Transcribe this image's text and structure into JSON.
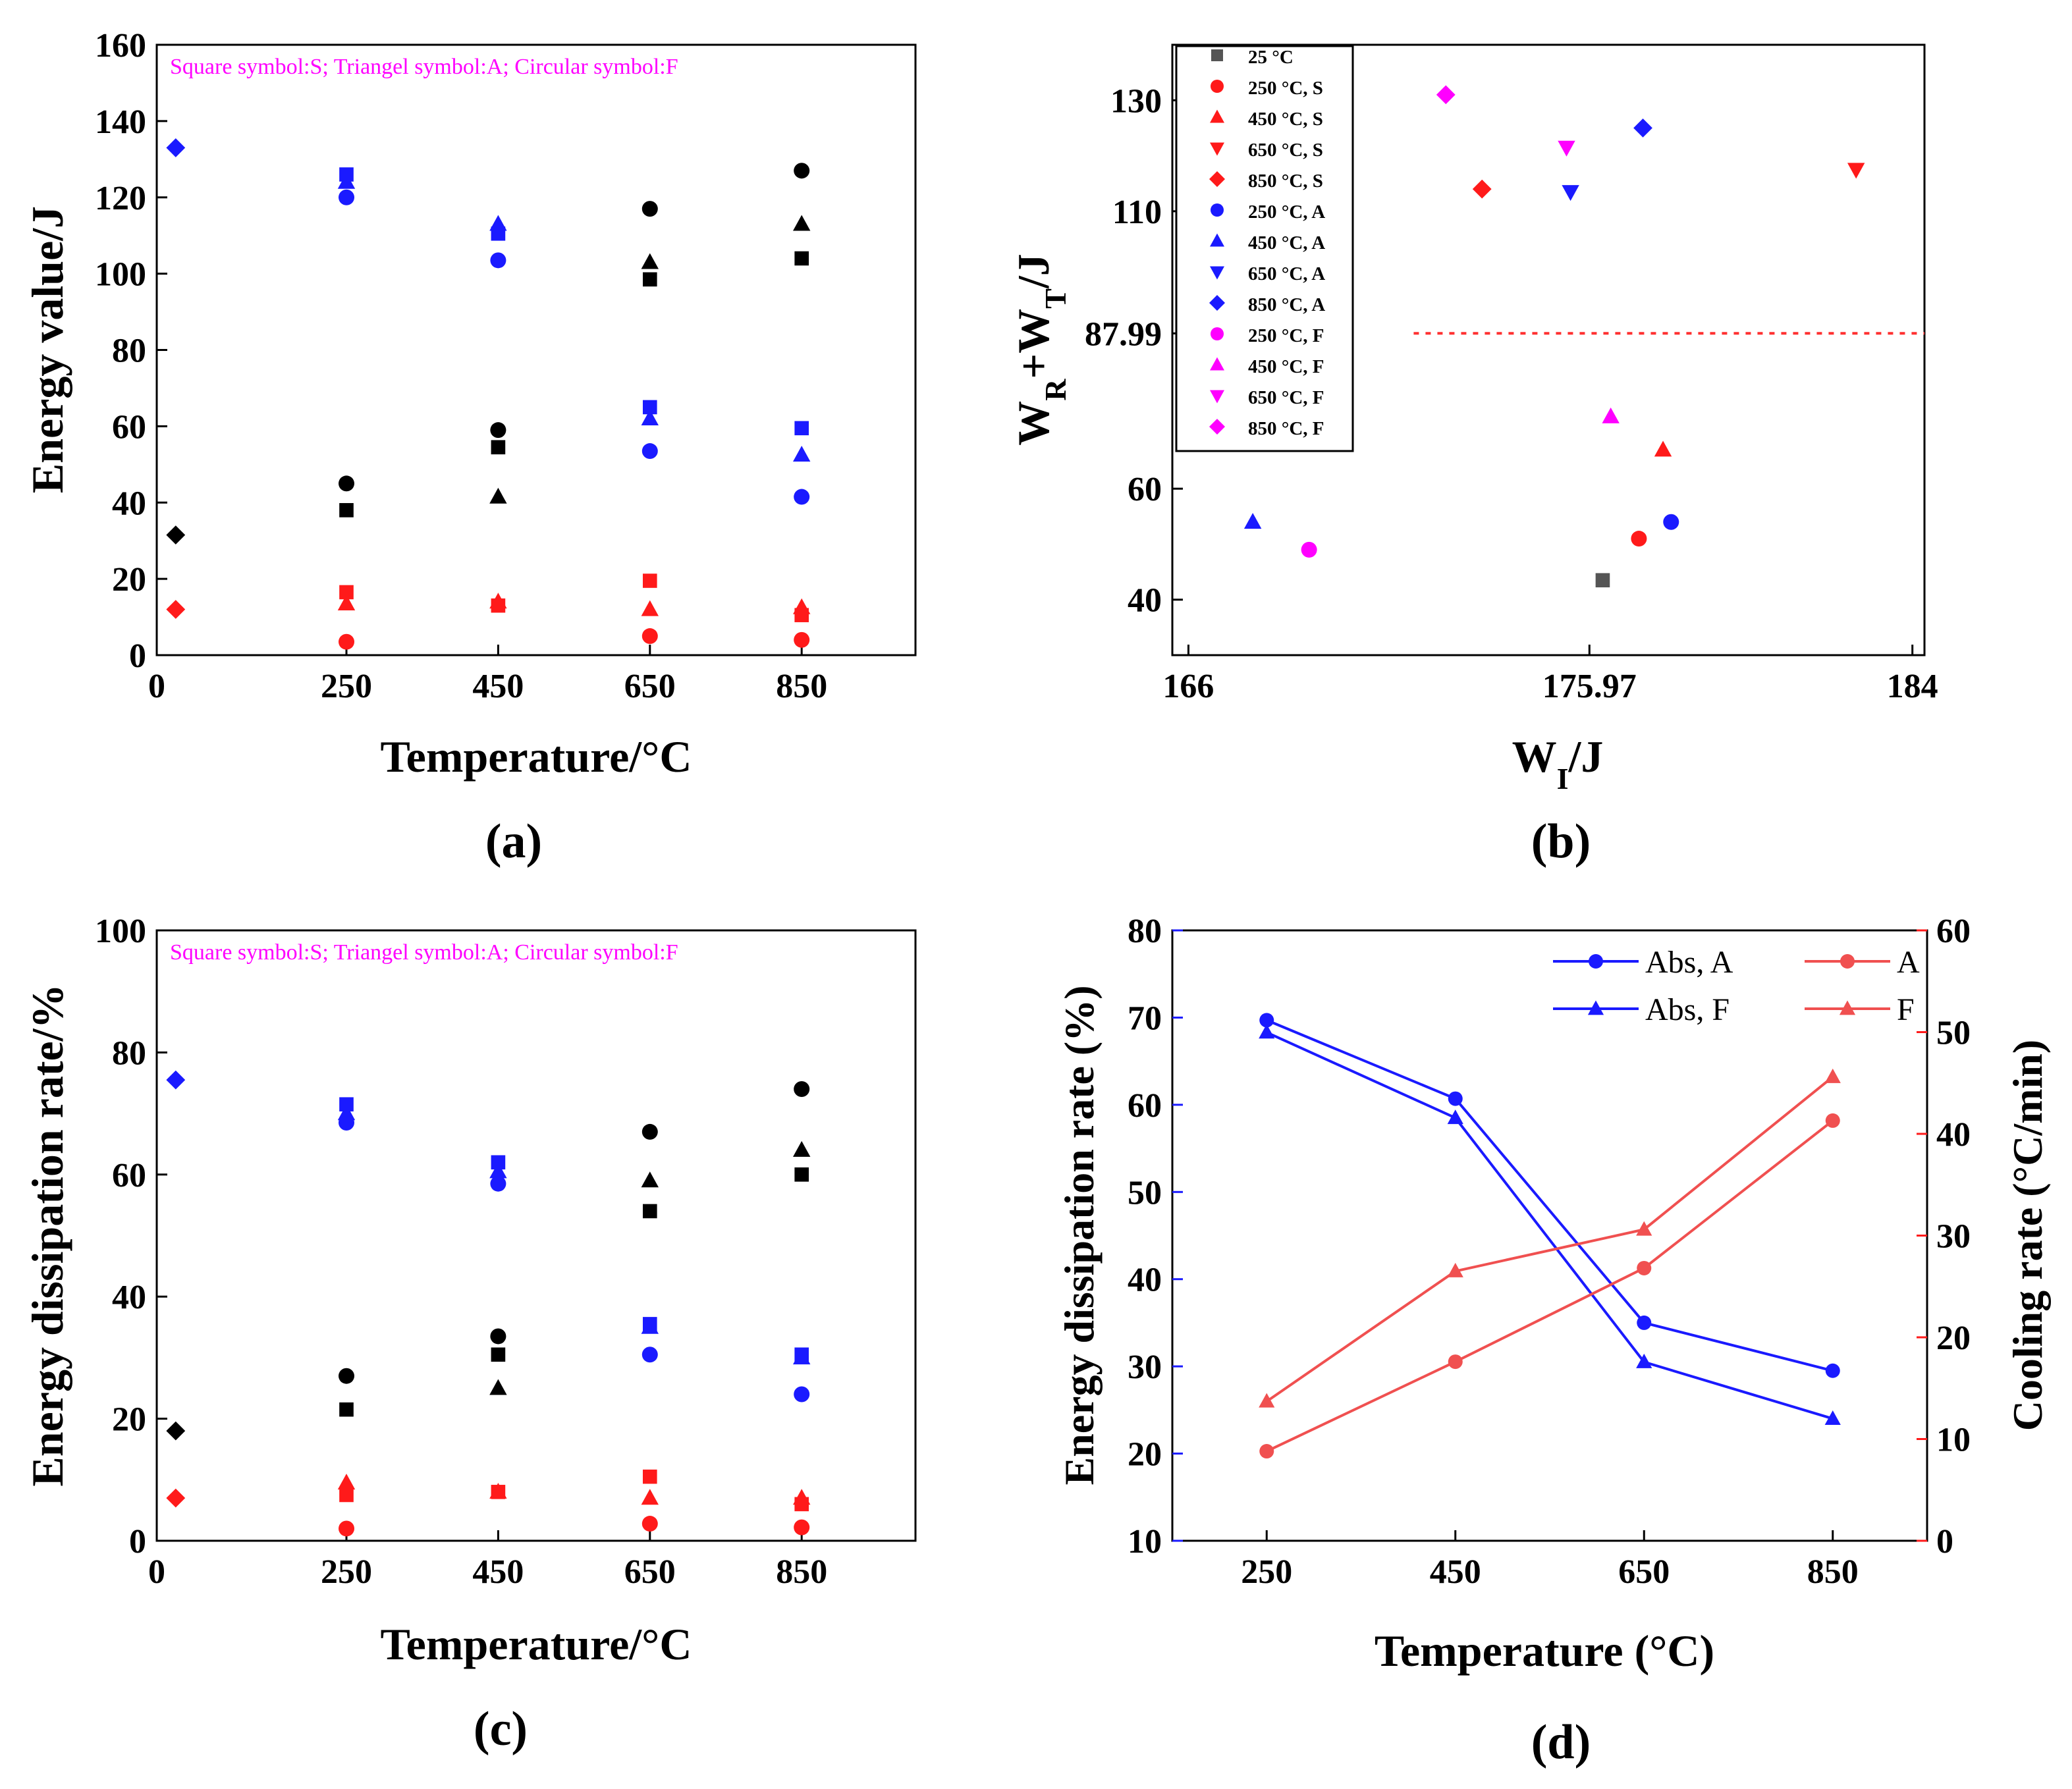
{
  "colors": {
    "black": "#000000",
    "blue": "#1a1aff",
    "red": "#ff1a1a",
    "magenta": "#ff00ff",
    "gray": "#555555",
    "lightred": "#f05050"
  },
  "chart_data": [
    {
      "id": "a",
      "type": "scatter",
      "panel_label": "(a)",
      "note": "Square symbol:S; Triangel symbol:A; Circular symbol:F",
      "xlabel": "Temperature/°C",
      "ylabel": "Energy value/J",
      "xlim": [
        0,
        1000
      ],
      "ylim": [
        0,
        160
      ],
      "xticks": [
        0,
        250,
        450,
        650,
        850
      ],
      "yticks": [
        0,
        20,
        40,
        60,
        80,
        100,
        120,
        140,
        160
      ],
      "series": [
        {
          "name": "black-square",
          "color": "black",
          "marker": "square",
          "points": [
            [
              250,
              38
            ],
            [
              450,
              54.5
            ],
            [
              650,
              98.5
            ],
            [
              850,
              104
            ]
          ]
        },
        {
          "name": "black-triangle",
          "color": "black",
          "marker": "triangle",
          "points": [
            [
              450,
              41.5
            ],
            [
              650,
              103
            ],
            [
              850,
              113
            ]
          ]
        },
        {
          "name": "black-circle",
          "color": "black",
          "marker": "circle",
          "points": [
            [
              250,
              45
            ],
            [
              450,
              59
            ],
            [
              650,
              117
            ],
            [
              850,
              127
            ]
          ]
        },
        {
          "name": "black-diamond",
          "color": "black",
          "marker": "diamond",
          "points": [
            [
              25,
              31.5
            ]
          ]
        },
        {
          "name": "blue-square",
          "color": "blue",
          "marker": "square",
          "points": [
            [
              250,
              126
            ],
            [
              450,
              110.5
            ],
            [
              650,
              65
            ],
            [
              850,
              59.5
            ]
          ]
        },
        {
          "name": "blue-triangle",
          "color": "blue",
          "marker": "triangle",
          "points": [
            [
              250,
              124
            ],
            [
              450,
              113
            ],
            [
              650,
              62
            ],
            [
              850,
              52.5
            ]
          ]
        },
        {
          "name": "blue-circle",
          "color": "blue",
          "marker": "circle",
          "points": [
            [
              250,
              120
            ],
            [
              450,
              103.5
            ],
            [
              650,
              53.5
            ],
            [
              850,
              41.5
            ]
          ]
        },
        {
          "name": "blue-diamond",
          "color": "blue",
          "marker": "diamond",
          "points": [
            [
              25,
              133
            ]
          ]
        },
        {
          "name": "red-square",
          "color": "red",
          "marker": "square",
          "points": [
            [
              250,
              16.5
            ],
            [
              450,
              13
            ],
            [
              650,
              19.5
            ],
            [
              850,
              10.5
            ]
          ]
        },
        {
          "name": "red-triangle",
          "color": "red",
          "marker": "triangle",
          "points": [
            [
              250,
              13.5
            ],
            [
              450,
              14
            ],
            [
              650,
              12
            ],
            [
              850,
              12.5
            ]
          ]
        },
        {
          "name": "red-circle",
          "color": "red",
          "marker": "circle",
          "points": [
            [
              250,
              3.5
            ],
            [
              650,
              5
            ],
            [
              850,
              4
            ]
          ]
        },
        {
          "name": "red-diamond",
          "color": "red",
          "marker": "diamond",
          "points": [
            [
              25,
              12
            ]
          ]
        }
      ]
    },
    {
      "id": "b",
      "type": "scatter",
      "panel_label": "(b)",
      "xlabel": "W_I/J",
      "ylabel": "W_R+W_T/J",
      "xlim": [
        165.6,
        184.3
      ],
      "ylim": [
        30,
        140
      ],
      "xticks": [
        {
          "v": 166,
          "label": "166"
        },
        {
          "v": 175.97,
          "label": "175.97"
        },
        {
          "v": 184,
          "label": "184"
        }
      ],
      "yticks": [
        {
          "v": 40,
          "label": "40"
        },
        {
          "v": 60,
          "label": "60"
        },
        {
          "v": 87.99,
          "label": "87.99"
        },
        {
          "v": 110,
          "label": "110"
        },
        {
          "v": 130,
          "label": "130"
        }
      ],
      "threshold_y": 87.99,
      "threshold_xstart": 171.6,
      "series": [
        {
          "name": "25 °C",
          "color": "gray",
          "marker": "square",
          "x": 176.3,
          "y": 43.5
        },
        {
          "name": "250 °C, S",
          "color": "red",
          "marker": "circle",
          "x": 177.2,
          "y": 51
        },
        {
          "name": "450 °C, S",
          "color": "red",
          "marker": "triangle",
          "x": 177.8,
          "y": 67
        },
        {
          "name": "650 °C, S",
          "color": "red",
          "marker": "triangle-down",
          "x": 182.6,
          "y": 117.5
        },
        {
          "name": "850 °C, S",
          "color": "red",
          "marker": "diamond",
          "x": 173.3,
          "y": 114
        },
        {
          "name": "250 °C, A",
          "color": "blue",
          "marker": "circle",
          "x": 178.0,
          "y": 54
        },
        {
          "name": "450 °C, A",
          "color": "blue",
          "marker": "triangle",
          "x": 167.6,
          "y": 54
        },
        {
          "name": "650 °C, A",
          "color": "blue",
          "marker": "triangle-down",
          "x": 175.5,
          "y": 113.5
        },
        {
          "name": "850 °C, A",
          "color": "blue",
          "marker": "diamond",
          "x": 177.3,
          "y": 125
        },
        {
          "name": "250 °C, F",
          "color": "magenta",
          "marker": "circle",
          "x": 169.0,
          "y": 49
        },
        {
          "name": "450 °C, F",
          "color": "magenta",
          "marker": "triangle",
          "x": 176.5,
          "y": 73
        },
        {
          "name": "650 °C, F",
          "color": "magenta",
          "marker": "triangle-down",
          "x": 175.4,
          "y": 121.5
        },
        {
          "name": "850 °C, F",
          "color": "magenta",
          "marker": "diamond",
          "x": 172.4,
          "y": 131
        }
      ]
    },
    {
      "id": "c",
      "type": "scatter",
      "panel_label": "(c)",
      "note": "Square symbol:S; Triangel symbol:A; Circular symbol:F",
      "xlabel": "Temperature/°C",
      "ylabel": "Energy dissipation rate/%",
      "xlim": [
        0,
        1000
      ],
      "ylim": [
        0,
        100
      ],
      "xticks": [
        0,
        250,
        450,
        650,
        850
      ],
      "yticks": [
        0,
        20,
        40,
        60,
        80,
        100
      ],
      "series": [
        {
          "name": "black-square",
          "color": "black",
          "marker": "square",
          "points": [
            [
              250,
              21.5
            ],
            [
              450,
              30.5
            ],
            [
              650,
              54
            ],
            [
              850,
              60
            ]
          ]
        },
        {
          "name": "black-triangle",
          "color": "black",
          "marker": "triangle",
          "points": [
            [
              450,
              25
            ],
            [
              650,
              59
            ],
            [
              850,
              64
            ]
          ]
        },
        {
          "name": "black-circle",
          "color": "black",
          "marker": "circle",
          "points": [
            [
              250,
              27
            ],
            [
              450,
              33.5
            ],
            [
              650,
              67
            ],
            [
              850,
              74
            ]
          ]
        },
        {
          "name": "black-diamond",
          "color": "black",
          "marker": "diamond",
          "points": [
            [
              25,
              18
            ]
          ]
        },
        {
          "name": "blue-square",
          "color": "blue",
          "marker": "square",
          "points": [
            [
              250,
              71.5
            ],
            [
              450,
              62
            ],
            [
              650,
              35.5
            ],
            [
              850,
              30.5
            ]
          ]
        },
        {
          "name": "blue-triangle",
          "color": "blue",
          "marker": "triangle",
          "points": [
            [
              250,
              70
            ],
            [
              450,
              60.5
            ],
            [
              650,
              35
            ],
            [
              850,
              30
            ]
          ]
        },
        {
          "name": "blue-circle",
          "color": "blue",
          "marker": "circle",
          "points": [
            [
              250,
              68.5
            ],
            [
              450,
              58.5
            ],
            [
              650,
              30.5
            ],
            [
              850,
              24
            ]
          ]
        },
        {
          "name": "blue-diamond",
          "color": "blue",
          "marker": "diamond",
          "points": [
            [
              25,
              75.5
            ]
          ]
        },
        {
          "name": "red-square",
          "color": "red",
          "marker": "square",
          "points": [
            [
              250,
              7.5
            ],
            [
              450,
              8
            ],
            [
              650,
              10.5
            ],
            [
              850,
              6
            ]
          ]
        },
        {
          "name": "red-triangle",
          "color": "red",
          "marker": "triangle",
          "points": [
            [
              250,
              9.5
            ],
            [
              450,
              8
            ],
            [
              650,
              7
            ],
            [
              850,
              7
            ]
          ]
        },
        {
          "name": "red-circle",
          "color": "red",
          "marker": "circle",
          "points": [
            [
              250,
              2
            ],
            [
              650,
              2.8
            ],
            [
              850,
              2.2
            ]
          ]
        },
        {
          "name": "red-diamond",
          "color": "red",
          "marker": "diamond",
          "points": [
            [
              25,
              7
            ]
          ]
        }
      ]
    },
    {
      "id": "d",
      "type": "line",
      "panel_label": "(d)",
      "xlabel": "Temperature (°C)",
      "ylabel": "Energy dissipation rate (%)",
      "y2label": "Cooling rate (°C/min)",
      "xlim": [
        150,
        950
      ],
      "ylim": [
        10,
        80
      ],
      "y2lim": [
        0,
        60
      ],
      "xticks": [
        250,
        450,
        650,
        850
      ],
      "yticks": [
        10,
        20,
        30,
        40,
        50,
        60,
        70,
        80
      ],
      "y2ticks": [
        0,
        10,
        20,
        30,
        40,
        50,
        60
      ],
      "x": [
        250,
        450,
        650,
        850
      ],
      "series": [
        {
          "name": "Abs, A",
          "axis": "left",
          "color": "blue",
          "marker": "circle",
          "values": [
            69.7,
            60.7,
            35,
            29.5
          ]
        },
        {
          "name": "Abs, F",
          "axis": "left",
          "color": "blue",
          "marker": "triangle",
          "values": [
            68.3,
            58.5,
            30.5,
            24
          ]
        },
        {
          "name": "A",
          "axis": "right",
          "color": "lightred",
          "marker": "circle",
          "values": [
            8.8,
            17.6,
            26.8,
            41.3
          ]
        },
        {
          "name": "F",
          "axis": "right",
          "color": "lightred",
          "marker": "triangle",
          "values": [
            13.7,
            26.5,
            30.6,
            45.6
          ]
        }
      ]
    }
  ]
}
